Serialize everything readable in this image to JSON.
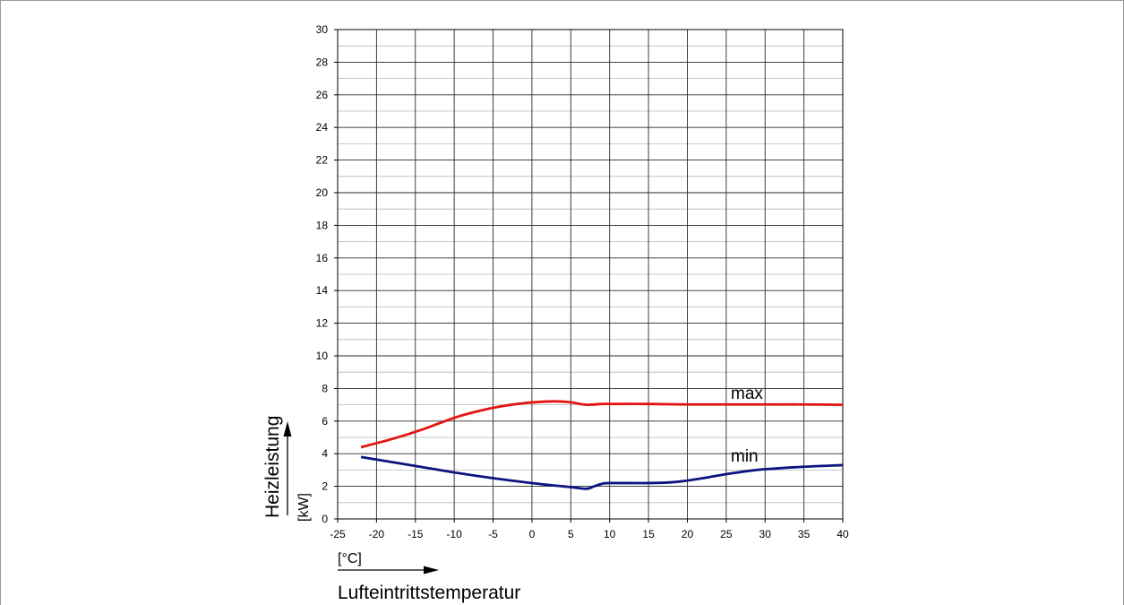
{
  "chart_data": {
    "type": "line",
    "xlabel": "Lufteintrittstemperatur",
    "xunit": "[°C]",
    "ylabel": "Heizleistung",
    "yunit": "[kW]",
    "xlim": [
      -25,
      40
    ],
    "ylim": [
      0,
      30
    ],
    "xticks": [
      -25,
      -20,
      -15,
      -10,
      -5,
      0,
      5,
      10,
      15,
      20,
      25,
      30,
      35,
      40
    ],
    "yticks": [
      0,
      2,
      4,
      6,
      8,
      10,
      12,
      14,
      16,
      18,
      20,
      22,
      24,
      26,
      28,
      30
    ],
    "grid": true,
    "series": [
      {
        "name": "max",
        "color": "#e3140f",
        "x": [
          -22,
          -18,
          -14,
          -10,
          -7,
          -4,
          -1,
          2,
          3.5,
          5,
          7,
          9,
          10,
          15,
          20,
          25,
          30,
          35,
          40
        ],
        "y": [
          4.4,
          4.9,
          5.5,
          6.2,
          6.6,
          6.9,
          7.1,
          7.2,
          7.2,
          7.15,
          7.0,
          7.05,
          7.05,
          7.05,
          7.02,
          7.02,
          7.02,
          7.02,
          7.0
        ]
      },
      {
        "name": "min",
        "color": "#0c1480",
        "x": [
          -22,
          -15,
          -10,
          -5,
          0,
          5,
          7,
          8,
          9,
          10,
          15,
          18,
          20,
          22,
          25,
          28,
          30,
          35,
          40
        ],
        "y": [
          3.8,
          3.25,
          2.85,
          2.5,
          2.2,
          1.95,
          1.85,
          2.0,
          2.15,
          2.2,
          2.2,
          2.25,
          2.35,
          2.5,
          2.75,
          2.95,
          3.05,
          3.2,
          3.3
        ]
      }
    ]
  }
}
